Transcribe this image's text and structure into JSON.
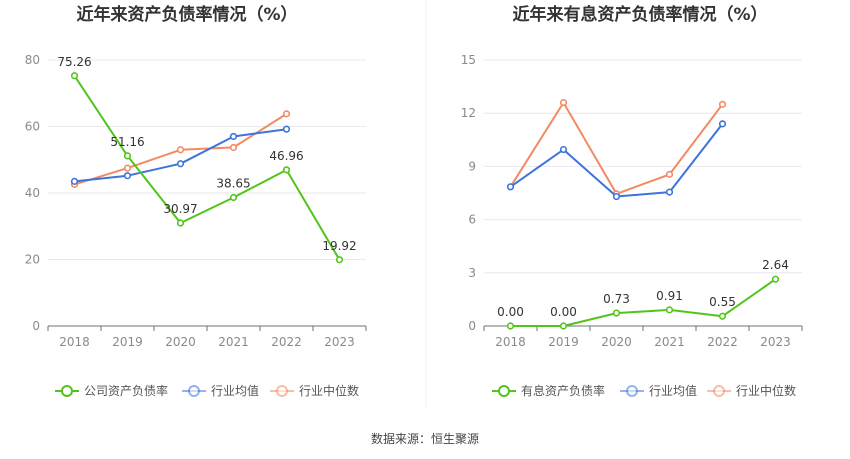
{
  "source_text": "数据来源：恒生聚源",
  "chart_data": [
    {
      "type": "line",
      "title": "近年来资产负债率情况（%）",
      "categories": [
        "2018",
        "2019",
        "2020",
        "2021",
        "2022",
        "2023"
      ],
      "ylim": [
        0,
        80
      ],
      "yticks": [
        "0",
        "20",
        "40",
        "60",
        "80"
      ],
      "grid": true,
      "legend_position": "bottom",
      "series": [
        {
          "name": "公司资产负债率",
          "color": "#52c41a",
          "values": [
            75.26,
            51.16,
            30.97,
            38.65,
            46.96,
            19.92
          ],
          "labels": [
            "75.26",
            "51.16",
            "30.97",
            "38.65",
            "46.96",
            "19.92"
          ]
        },
        {
          "name": "行业均值",
          "color": "#3d74db",
          "values": [
            43.5,
            45.2,
            48.8,
            57.0,
            59.2,
            null
          ],
          "labels": []
        },
        {
          "name": "行业中位数",
          "color": "#f38a64",
          "values": [
            42.6,
            47.5,
            53.0,
            53.7,
            63.8,
            null
          ],
          "labels": []
        }
      ]
    },
    {
      "type": "line",
      "title": "近年来有息资产负债率情况（%）",
      "categories": [
        "2018",
        "2019",
        "2020",
        "2021",
        "2022",
        "2023"
      ],
      "ylim": [
        0,
        15
      ],
      "yticks": [
        "0",
        "3",
        "6",
        "9",
        "12",
        "15"
      ],
      "grid": true,
      "legend_position": "bottom",
      "series": [
        {
          "name": "有息资产负债率",
          "color": "#52c41a",
          "values": [
            0.0,
            0.0,
            0.73,
            0.91,
            0.55,
            2.64
          ],
          "labels": [
            "0.00",
            "0.00",
            "0.73",
            "0.91",
            "0.55",
            "2.64"
          ]
        },
        {
          "name": "行业均值",
          "color": "#3d74db",
          "values": [
            7.85,
            9.95,
            7.3,
            7.55,
            11.4,
            null
          ],
          "labels": []
        },
        {
          "name": "行业中位数",
          "color": "#f38a64",
          "values": [
            7.85,
            12.6,
            7.45,
            8.55,
            12.5,
            null
          ],
          "labels": []
        }
      ]
    }
  ]
}
